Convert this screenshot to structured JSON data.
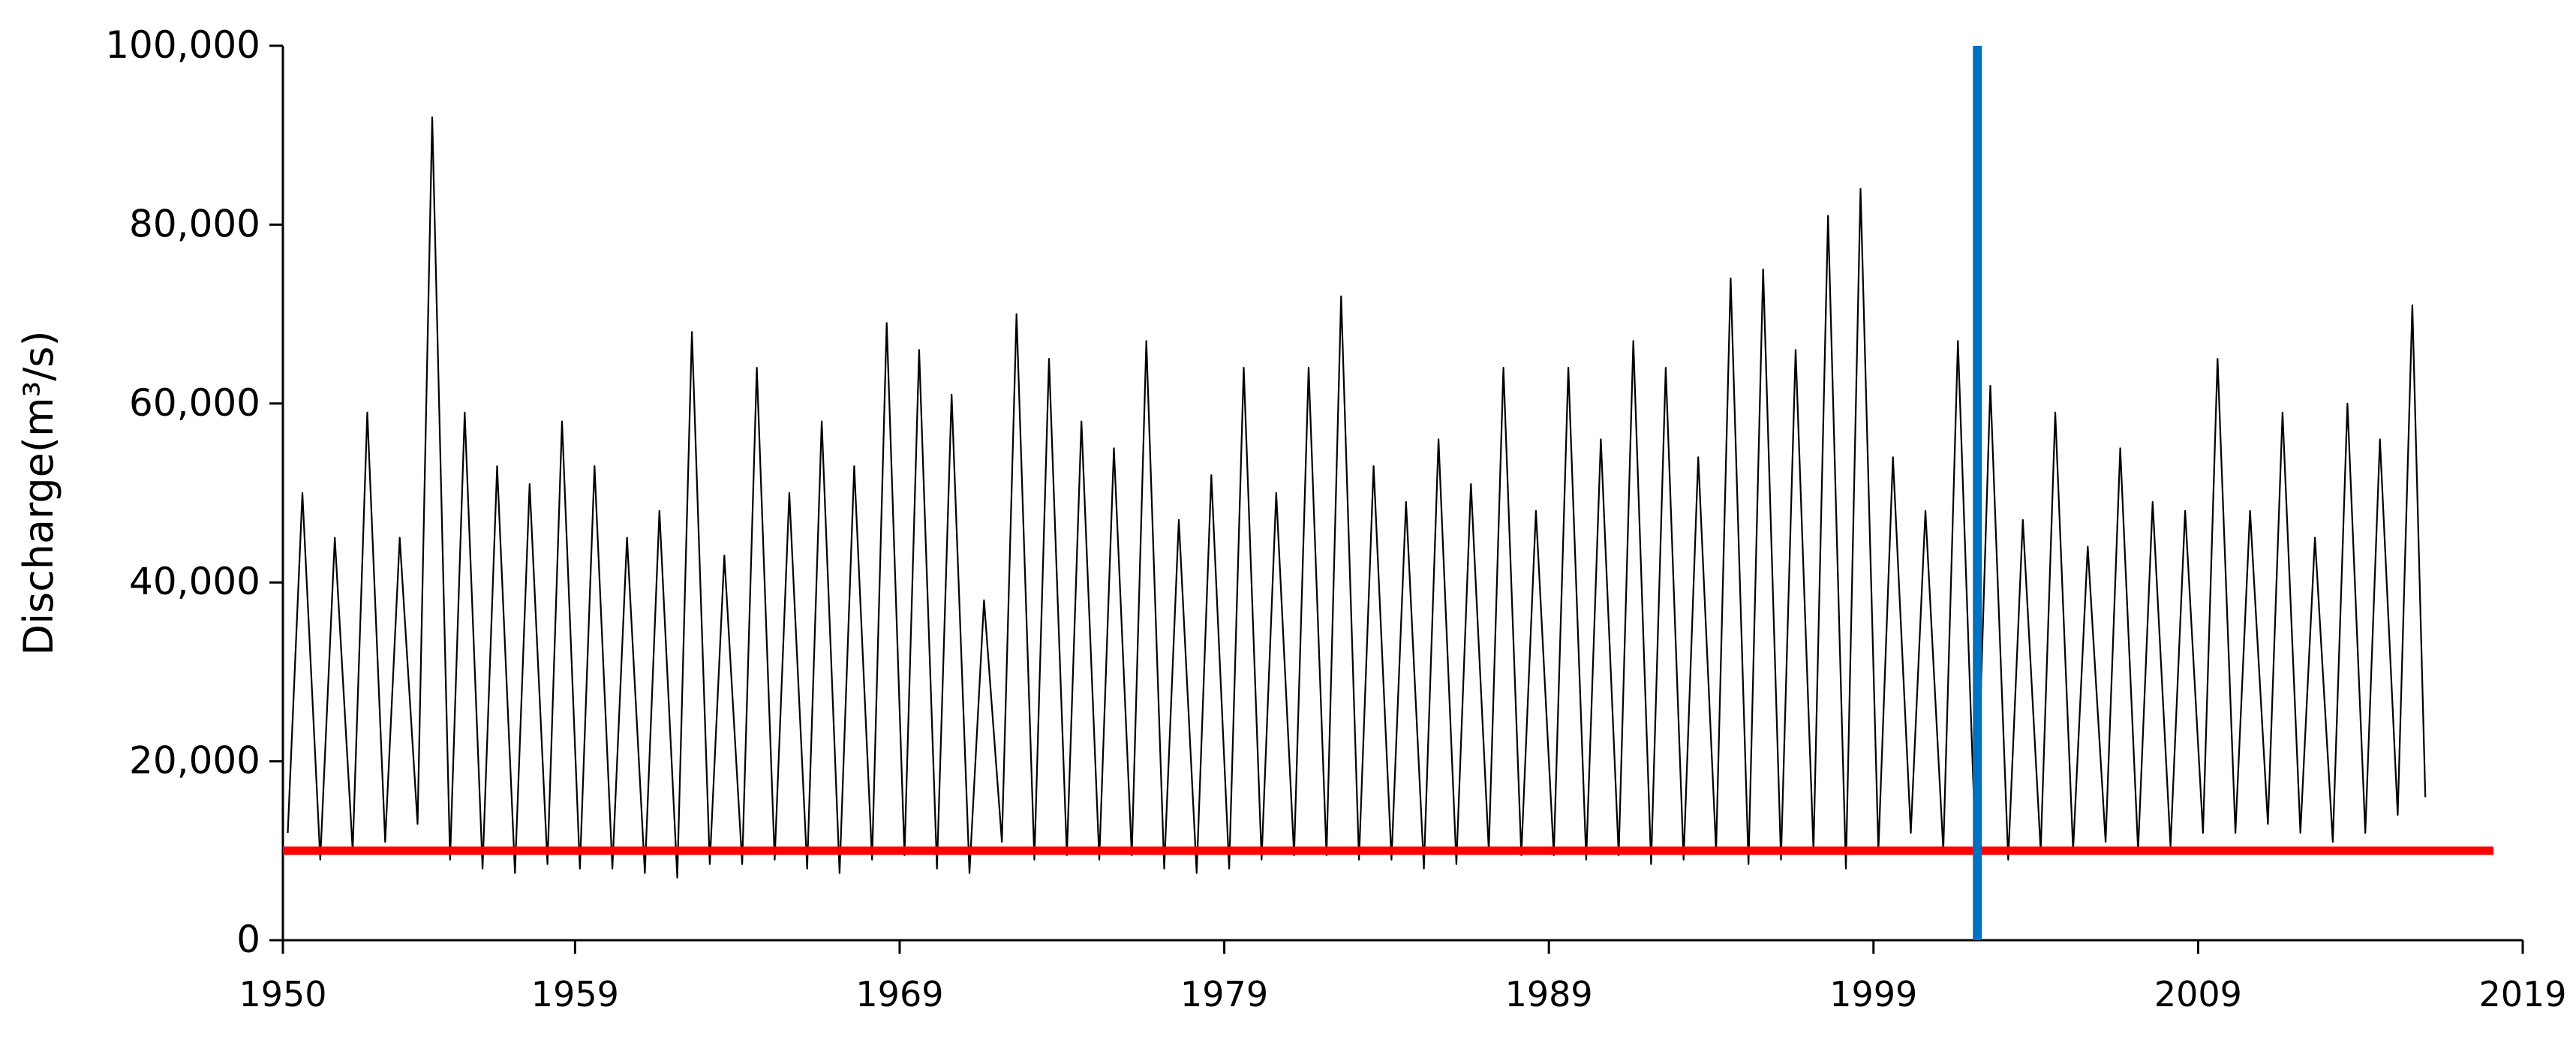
{
  "chart_data": {
    "type": "line",
    "ylabel": "Discharge(m³/s)",
    "xlim": [
      1950,
      2019
    ],
    "xticks": [
      1950,
      1959,
      1969,
      1979,
      1989,
      1999,
      2009,
      2019
    ],
    "ylim": [
      0,
      100000
    ],
    "yticks": [
      0,
      {
        "value": 20000,
        "label": "20,000"
      },
      {
        "value": 40000,
        "label": "40,000"
      },
      {
        "value": 60000,
        "label": "60,000"
      },
      {
        "value": 80000,
        "label": "80,000"
      },
      {
        "value": 100000,
        "label": "100,000"
      }
    ],
    "hlines": [
      {
        "value": 10000,
        "xmax": 2018.1,
        "color": "#ff0000"
      }
    ],
    "vlines": [
      {
        "value": 2002.2,
        "color": "#0070c0"
      }
    ],
    "series": [
      {
        "color": "#000000",
        "x": [
          1950.15,
          1950.6,
          1951.15,
          1951.6,
          1952.15,
          1952.6,
          1953.15,
          1953.6,
          1954.15,
          1954.6,
          1955.15,
          1955.6,
          1956.15,
          1956.6,
          1957.15,
          1957.6,
          1958.15,
          1958.6,
          1959.15,
          1959.6,
          1960.15,
          1960.6,
          1961.15,
          1961.6,
          1962.15,
          1962.6,
          1963.15,
          1963.6,
          1964.15,
          1964.6,
          1965.15,
          1965.6,
          1966.15,
          1966.6,
          1967.15,
          1967.6,
          1968.15,
          1968.6,
          1969.15,
          1969.6,
          1970.15,
          1970.6,
          1971.15,
          1971.6,
          1972.15,
          1972.6,
          1973.15,
          1973.6,
          1974.15,
          1974.6,
          1975.15,
          1975.6,
          1976.15,
          1976.6,
          1977.15,
          1977.6,
          1978.15,
          1978.6,
          1979.15,
          1979.6,
          1980.15,
          1980.6,
          1981.15,
          1981.6,
          1982.15,
          1982.6,
          1983.15,
          1983.6,
          1984.15,
          1984.6,
          1985.15,
          1985.6,
          1986.15,
          1986.6,
          1987.15,
          1987.6,
          1988.15,
          1988.6,
          1989.15,
          1989.6,
          1990.15,
          1990.6,
          1991.15,
          1991.6,
          1992.15,
          1992.6,
          1993.15,
          1993.6,
          1994.15,
          1994.6,
          1995.15,
          1995.6,
          1996.15,
          1996.6,
          1997.15,
          1997.6,
          1998.15,
          1998.6,
          1999.15,
          1999.6,
          2000.15,
          2000.6,
          2001.15,
          2001.6,
          2002.15,
          2002.6,
          2003.15,
          2003.6,
          2004.15,
          2004.6,
          2005.15,
          2005.6,
          2006.15,
          2006.6,
          2007.15,
          2007.6,
          2008.15,
          2008.6,
          2009.15,
          2009.6,
          2010.15,
          2010.6,
          2011.15,
          2011.6,
          2012.15,
          2012.6,
          2013.15,
          2013.6,
          2014.15,
          2014.6,
          2015.15,
          2015.6,
          2016.0
        ],
        "values": [
          12000,
          50000,
          9000,
          45000,
          10000,
          59000,
          11000,
          45000,
          13000,
          92000,
          9000,
          59000,
          8000,
          53000,
          7500,
          51000,
          8500,
          58000,
          8000,
          53000,
          8000,
          45000,
          7500,
          48000,
          7000,
          68000,
          8500,
          43000,
          8500,
          64000,
          9000,
          50000,
          8000,
          58000,
          7500,
          53000,
          9000,
          69000,
          9500,
          66000,
          8000,
          61000,
          7500,
          38000,
          11000,
          70000,
          9000,
          65000,
          9500,
          58000,
          9000,
          55000,
          9500,
          67000,
          8000,
          47000,
          7500,
          52000,
          8000,
          64000,
          9000,
          50000,
          9500,
          64000,
          9500,
          72000,
          9000,
          53000,
          9000,
          49000,
          8000,
          56000,
          8500,
          51000,
          10000,
          64000,
          9500,
          48000,
          9500,
          64000,
          9000,
          56000,
          9500,
          67000,
          8500,
          64000,
          9000,
          54000,
          10000,
          74000,
          8500,
          75000,
          9000,
          66000,
          10000,
          81000,
          8000,
          84000,
          10000,
          54000,
          12000,
          48000,
          10000,
          67000,
          9500,
          62000,
          9000,
          47000,
          10000,
          59000,
          10000,
          44000,
          11000,
          55000,
          10000,
          49000,
          10500,
          48000,
          12000,
          65000,
          12000,
          48000,
          13000,
          59000,
          12000,
          45000,
          11000,
          60000,
          12000,
          56000,
          14000,
          71000,
          16000
        ]
      }
    ]
  }
}
